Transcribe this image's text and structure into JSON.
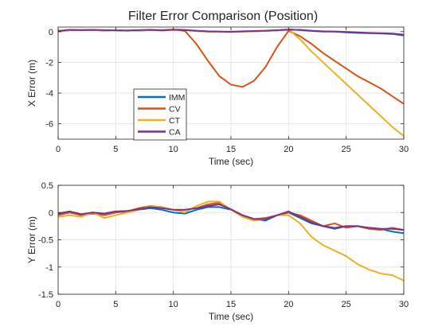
{
  "title": "Filter Error Comparison (Position)",
  "colors": {
    "IMM": "#0072BD",
    "CV": "#D95319",
    "CT": "#EDB120",
    "CA": "#7E2F8E"
  },
  "chart_data": [
    {
      "type": "line",
      "xlabel": "Time (sec)",
      "ylabel": "X Error (m)",
      "xlim": [
        0,
        30
      ],
      "ylim": [
        -7,
        0.3
      ],
      "xticks": [
        0,
        5,
        10,
        15,
        20,
        25,
        30
      ],
      "yticks": [
        0,
        -2,
        -4,
        -6
      ],
      "grid": true,
      "legend": {
        "position": "lower-left",
        "entries": [
          "IMM",
          "CV",
          "CT",
          "CA"
        ]
      },
      "series": [
        {
          "name": "IMM",
          "color": "#0072BD",
          "x": [
            0,
            1,
            2,
            3,
            4,
            5,
            6,
            7,
            8,
            9,
            10,
            11,
            12,
            13,
            14,
            15,
            16,
            17,
            18,
            19,
            20,
            21,
            22,
            23,
            24,
            25,
            26,
            27,
            28,
            29,
            30
          ],
          "y": [
            0,
            0.1,
            0.12,
            0.1,
            0.08,
            0.1,
            0.06,
            0.08,
            0.1,
            0.1,
            0.15,
            0.12,
            0.04,
            0,
            -0.02,
            0,
            0,
            0.02,
            0.05,
            0.08,
            0.15,
            0.1,
            0.05,
            0,
            0,
            -0.05,
            -0.08,
            -0.1,
            -0.12,
            -0.15,
            -0.25
          ]
        },
        {
          "name": "CV",
          "color": "#D95319",
          "x": [
            0,
            1,
            2,
            3,
            4,
            5,
            6,
            7,
            8,
            9,
            10,
            11,
            12,
            13,
            14,
            15,
            16,
            17,
            18,
            19,
            20,
            21,
            22,
            23,
            24,
            25,
            26,
            27,
            28,
            29,
            30
          ],
          "y": [
            0,
            0.1,
            0.12,
            0.1,
            0.08,
            0.1,
            0.06,
            0.08,
            0.1,
            0.1,
            0.15,
            0.05,
            -0.8,
            -1.9,
            -2.9,
            -3.45,
            -3.6,
            -3.2,
            -2.3,
            -1.0,
            0.05,
            -0.3,
            -0.8,
            -1.4,
            -1.9,
            -2.4,
            -2.9,
            -3.3,
            -3.7,
            -4.2,
            -4.7
          ]
        },
        {
          "name": "CT",
          "color": "#EDB120",
          "x": [
            0,
            1,
            2,
            3,
            4,
            5,
            6,
            7,
            8,
            9,
            10,
            11,
            12,
            13,
            14,
            15,
            16,
            17,
            18,
            19,
            20,
            21,
            22,
            23,
            24,
            25,
            26,
            27,
            28,
            29,
            30
          ],
          "y": [
            0,
            0.1,
            0.12,
            0.1,
            0.08,
            0.1,
            0.06,
            0.08,
            0.1,
            0.1,
            0.15,
            0.12,
            0.04,
            0,
            -0.02,
            0,
            0,
            0.02,
            0.05,
            0.08,
            0.15,
            -0.5,
            -1.3,
            -2.0,
            -2.7,
            -3.4,
            -4.1,
            -4.8,
            -5.5,
            -6.2,
            -6.8
          ]
        },
        {
          "name": "CA",
          "color": "#7E2F8E",
          "x": [
            0,
            1,
            2,
            3,
            4,
            5,
            6,
            7,
            8,
            9,
            10,
            11,
            12,
            13,
            14,
            15,
            16,
            17,
            18,
            19,
            20,
            21,
            22,
            23,
            24,
            25,
            26,
            27,
            28,
            29,
            30
          ],
          "y": [
            0.05,
            0.12,
            0.1,
            0.12,
            0.1,
            0.08,
            0.08,
            0.1,
            0.12,
            0.08,
            0.12,
            0.1,
            0.06,
            0.02,
            0.01,
            -0.02,
            0.02,
            0.04,
            0.06,
            0.1,
            0.12,
            0.12,
            0.06,
            0.02,
            0.01,
            -0.02,
            -0.05,
            -0.08,
            -0.1,
            -0.12,
            -0.2
          ]
        }
      ]
    },
    {
      "type": "line",
      "xlabel": "Time (sec)",
      "ylabel": "Y Error (m)",
      "xlim": [
        0,
        30
      ],
      "ylim": [
        -1.5,
        0.5
      ],
      "xticks": [
        0,
        5,
        10,
        15,
        20,
        25,
        30
      ],
      "yticks": [
        0.5,
        0,
        -0.5,
        -1,
        -1.5
      ],
      "grid": true,
      "series": [
        {
          "name": "IMM",
          "color": "#0072BD",
          "x": [
            0,
            1,
            2,
            3,
            4,
            5,
            6,
            7,
            8,
            9,
            10,
            11,
            12,
            13,
            14,
            15,
            16,
            17,
            18,
            19,
            20,
            21,
            22,
            23,
            24,
            25,
            26,
            27,
            28,
            29,
            30
          ],
          "y": [
            -0.02,
            0.02,
            -0.05,
            0,
            -0.02,
            0.02,
            0,
            0.05,
            0.08,
            0.05,
            0,
            -0.02,
            0.05,
            0.1,
            0.1,
            0.05,
            -0.05,
            -0.12,
            -0.15,
            -0.05,
            0,
            -0.1,
            -0.2,
            -0.25,
            -0.3,
            -0.25,
            -0.25,
            -0.3,
            -0.3,
            -0.35,
            -0.38
          ]
        },
        {
          "name": "CV",
          "color": "#D95319",
          "x": [
            0,
            1,
            2,
            3,
            4,
            5,
            6,
            7,
            8,
            9,
            10,
            11,
            12,
            13,
            14,
            15,
            16,
            17,
            18,
            19,
            20,
            21,
            22,
            23,
            24,
            25,
            26,
            27,
            28,
            29,
            30
          ],
          "y": [
            -0.05,
            0,
            -0.05,
            -0.02,
            -0.05,
            0,
            0.02,
            0.08,
            0.12,
            0.1,
            0.05,
            0.05,
            0.08,
            0.15,
            0.18,
            0.05,
            -0.05,
            -0.12,
            -0.1,
            -0.05,
            0,
            -0.05,
            -0.15,
            -0.25,
            -0.2,
            -0.28,
            -0.25,
            -0.3,
            -0.32,
            -0.28,
            -0.32
          ]
        },
        {
          "name": "CT",
          "color": "#EDB120",
          "x": [
            0,
            1,
            2,
            3,
            4,
            5,
            6,
            7,
            8,
            9,
            10,
            11,
            12,
            13,
            14,
            15,
            16,
            17,
            18,
            19,
            20,
            21,
            22,
            23,
            24,
            25,
            26,
            27,
            28,
            29,
            30
          ],
          "y": [
            -0.08,
            -0.05,
            -0.08,
            0,
            -0.1,
            -0.05,
            0,
            0.05,
            0.12,
            0.1,
            0.05,
            0,
            0.12,
            0.2,
            0.2,
            0.05,
            -0.08,
            -0.15,
            -0.12,
            -0.05,
            -0.05,
            -0.2,
            -0.45,
            -0.6,
            -0.7,
            -0.8,
            -0.95,
            -1.05,
            -1.12,
            -1.15,
            -1.25
          ]
        },
        {
          "name": "CA",
          "color": "#7E2F8E",
          "x": [
            0,
            1,
            2,
            3,
            4,
            5,
            6,
            7,
            8,
            9,
            10,
            11,
            12,
            13,
            14,
            15,
            16,
            17,
            18,
            19,
            20,
            21,
            22,
            23,
            24,
            25,
            26,
            27,
            28,
            29,
            30
          ],
          "y": [
            -0.02,
            0.02,
            -0.03,
            0,
            -0.02,
            0.02,
            0.03,
            0.06,
            0.1,
            0.08,
            0.05,
            0.05,
            0.08,
            0.12,
            0.15,
            0.06,
            -0.05,
            -0.12,
            -0.12,
            -0.05,
            0.02,
            -0.08,
            -0.18,
            -0.25,
            -0.28,
            -0.25,
            -0.25,
            -0.28,
            -0.3,
            -0.3,
            -0.32
          ]
        }
      ]
    }
  ]
}
